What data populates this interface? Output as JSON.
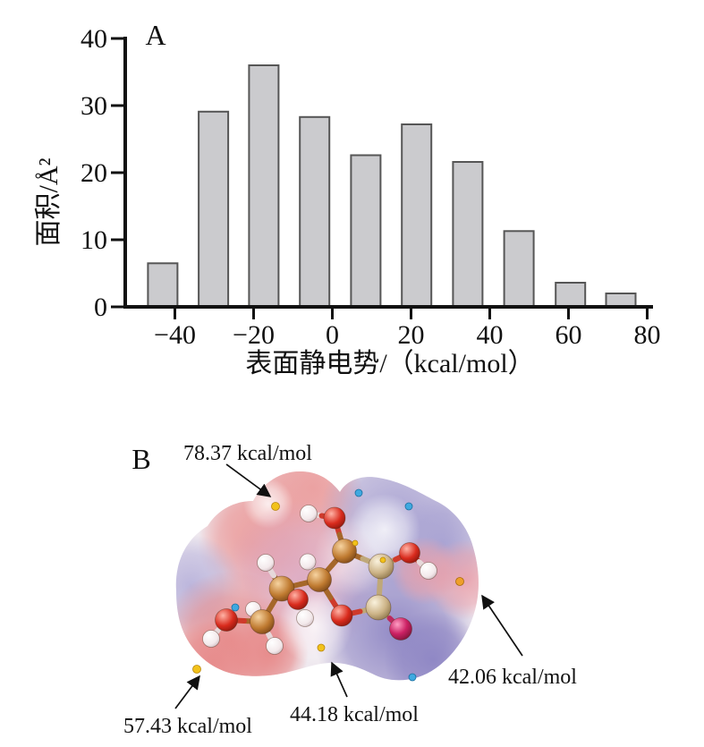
{
  "figure": {
    "panelA": {
      "label": "A"
    },
    "panelB": {
      "label": "B",
      "annotations": [
        {
          "id": "esp-point-top",
          "text": "78.37 kcal/mol"
        },
        {
          "id": "esp-point-right",
          "text": "42.06 kcal/mol"
        },
        {
          "id": "esp-point-bottom-center",
          "text": "44.18 kcal/mol"
        },
        {
          "id": "esp-point-bottom-left",
          "text": "57.43 kcal/mol"
        }
      ],
      "colors": {
        "surface_positive_pink": "#e89595",
        "surface_negative_blue": "#938bc7",
        "surface_neutral_mauve": "#dba6c0",
        "extremum_dot_yellow": "#f2c21a",
        "extremum_dot_orange": "#ef9f2a",
        "extremum_dot_cyan": "#3fa9e0",
        "atom_carbon_brown": "#c07b31",
        "atom_carbon_tan": "#cdb488",
        "atom_oxygen_red": "#d92b1d",
        "atom_oxygen_crimson": "#cc2164",
        "atom_hydrogen_white": "#f3e9eb"
      }
    }
  },
  "chart_data": {
    "type": "bar",
    "title": "",
    "xlabel": "表面静电势/（kcal/mol）",
    "ylabel": "面积/Å²",
    "x": [
      -43.1,
      -30.2,
      -17.4,
      -4.5,
      8.5,
      21.4,
      34.4,
      47.4,
      60.5,
      73.3
    ],
    "values": [
      6.5,
      29.1,
      36.0,
      28.3,
      22.6,
      27.2,
      21.6,
      11.3,
      3.6,
      2.0
    ],
    "bar_width_units": 7.5,
    "xticks": [
      -40,
      -20,
      0,
      20,
      40,
      60,
      80
    ],
    "yticks": [
      0,
      10,
      20,
      30,
      40
    ],
    "xlim": [
      -53,
      81
    ],
    "ylim": [
      0,
      40
    ],
    "grid": false,
    "legend": "none",
    "bar_fill": "#cbcbce",
    "bar_stroke": "#565656",
    "axis_color": "#111111"
  }
}
